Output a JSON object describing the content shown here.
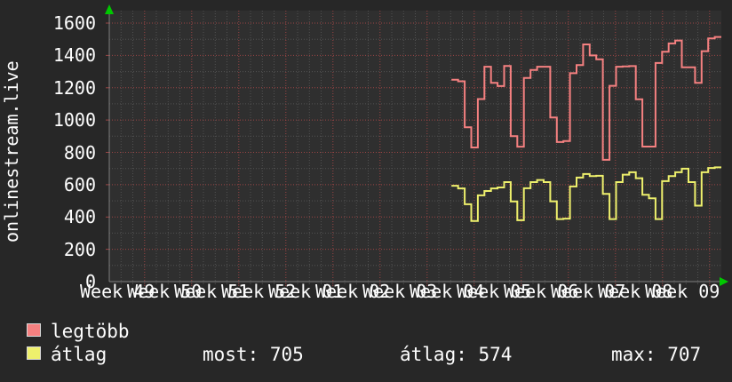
{
  "app": {
    "kind": "rrdtool-graph",
    "y_axis_title": "onlinestream.live"
  },
  "colors": {
    "background": "#272727",
    "plot_background": "#2f2f2f",
    "grid_minor": "#525252",
    "grid_major": "#9c4545",
    "axis": "#7d7d7d",
    "arrow_green": "#00c800",
    "text": "#fdfdfd",
    "series_legtobb": "#f58080",
    "series_atlag": "#eef06c"
  },
  "footer": {
    "legend": [
      {
        "label": "legtöbb",
        "color": "#f58080"
      },
      {
        "label": "átlag",
        "color": "#eef06c"
      }
    ],
    "stats": {
      "most_text": "most: 705",
      "atlag_text": "átlag: 574",
      "max_text": "max: 707"
    }
  },
  "chart_data": {
    "type": "line",
    "subtype": "step",
    "title": "",
    "ylabel": "onlinestream.live",
    "xlabel": "",
    "ylim": [
      0,
      1600
    ],
    "ytick_step": 200,
    "ytick_minor_step": 100,
    "grid": true,
    "legend_position": "bottom-left",
    "categories": [
      "Week 49",
      "Week 50",
      "Week 51",
      "Week 52",
      "Week 01",
      "Week 02",
      "Week 03",
      "Week 04",
      "Week 05",
      "Week 06",
      "Week 07",
      "Week 08",
      "Week 09"
    ],
    "x_total_days": 93,
    "stats": {
      "most": 705,
      "atlag": 574,
      "max": 707
    },
    "series": [
      {
        "name": "legtöbb",
        "color": "#f58080",
        "start_day": 52,
        "values": [
          1250,
          1240,
          955,
          830,
          1130,
          1330,
          1230,
          1210,
          1335,
          900,
          835,
          1260,
          1310,
          1330,
          1330,
          1016,
          864,
          870,
          1290,
          1340,
          1468,
          1400,
          1376,
          754,
          1212,
          1330,
          1332,
          1334,
          1129,
          836,
          836,
          1353,
          1423,
          1474,
          1492,
          1327,
          1327,
          1230,
          1426,
          1505,
          1514
        ]
      },
      {
        "name": "átlag",
        "color": "#eef06c",
        "start_day": 52,
        "values": [
          593,
          577,
          479,
          375,
          534,
          561,
          577,
          583,
          616,
          496,
          380,
          578,
          616,
          629,
          616,
          497,
          387,
          390,
          589,
          644,
          666,
          653,
          655,
          543,
          387,
          616,
          662,
          677,
          640,
          538,
          516,
          387,
          622,
          653,
          677,
          699,
          616,
          470,
          677,
          703,
          707
        ]
      }
    ]
  }
}
